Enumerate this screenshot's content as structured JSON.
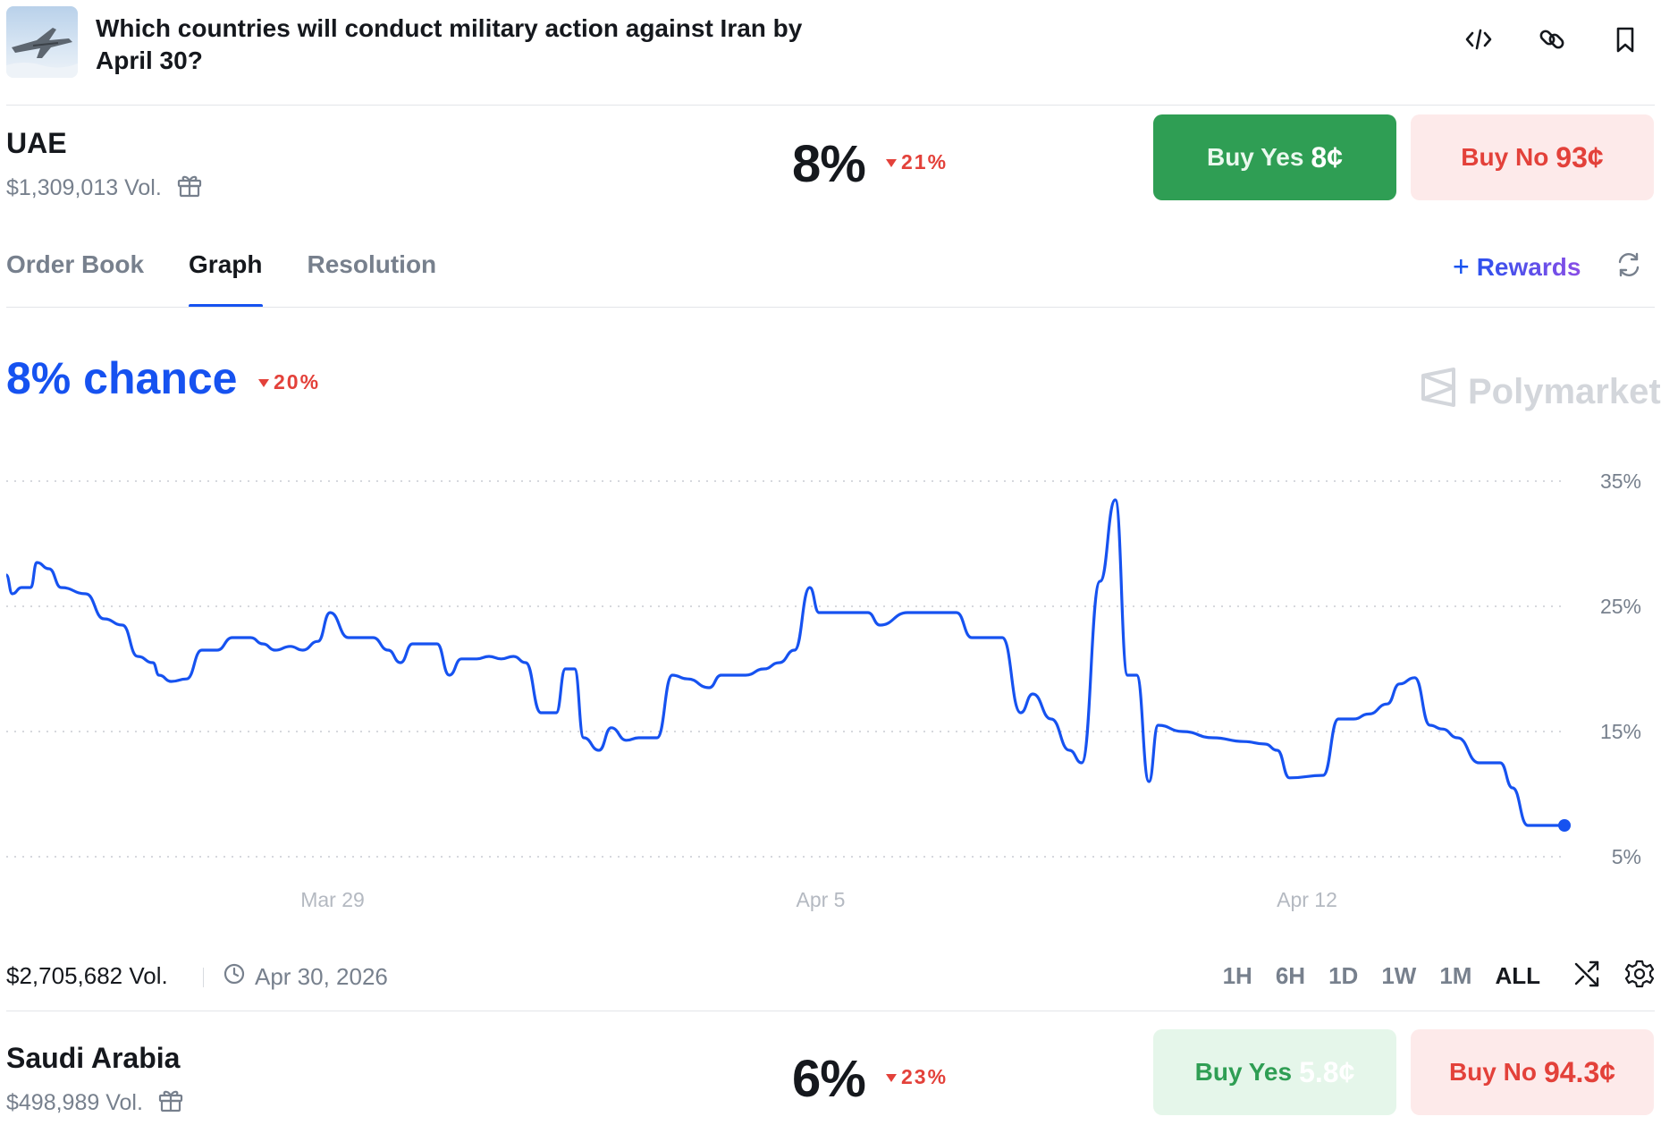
{
  "header": {
    "title": "Which countries will conduct military action against Iran by April 30?",
    "icons": [
      "embed-code-icon",
      "link-icon",
      "bookmark-icon"
    ]
  },
  "outcomes": [
    {
      "name": "UAE",
      "volume": "$1,309,013 Vol.",
      "percent": "8%",
      "change": "21%",
      "buy_yes_label": "Buy Yes",
      "buy_yes_price": "8¢",
      "buy_no_label": "Buy No",
      "buy_no_price": "93¢"
    },
    {
      "name": "Saudi Arabia",
      "volume": "$498,989 Vol.",
      "percent": "6%",
      "change": "23%",
      "buy_yes_label": "Buy Yes",
      "buy_yes_price": "5.8¢",
      "buy_no_label": "Buy No",
      "buy_no_price": "94.3¢"
    }
  ],
  "tabs": [
    {
      "label": "Order Book",
      "active": false
    },
    {
      "label": "Graph",
      "active": true
    },
    {
      "label": "Resolution",
      "active": false
    }
  ],
  "rewards_label": "Rewards",
  "chance": {
    "label": "8% chance",
    "change": "20%"
  },
  "brand": "Polymarket",
  "footer": {
    "volume": "$2,705,682 Vol.",
    "end_date": "Apr 30, 2026",
    "ranges": [
      "1H",
      "6H",
      "1D",
      "1W",
      "1M",
      "ALL"
    ],
    "active_range": "ALL"
  },
  "colors": {
    "accent": "#1652f0",
    "down": "#e3413a",
    "yes": "#2f9e54",
    "no_bg": "#fdeaea"
  },
  "chart_data": {
    "type": "line",
    "series": [
      {
        "values": [
          [
            0,
            27.5
          ],
          [
            0.2,
            26
          ],
          [
            0.5,
            26.5
          ],
          [
            0.8,
            26.5
          ],
          [
            1.0,
            28.5
          ],
          [
            1.4,
            28
          ],
          [
            1.8,
            26.5
          ],
          [
            2.6,
            26
          ],
          [
            3.2,
            24
          ],
          [
            3.8,
            23.5
          ],
          [
            4.3,
            21
          ],
          [
            4.8,
            20.5
          ],
          [
            5.0,
            19.5
          ],
          [
            5.4,
            19
          ],
          [
            5.9,
            19.2
          ],
          [
            6.4,
            21.5
          ],
          [
            6.9,
            21.5
          ],
          [
            7.4,
            22.5
          ],
          [
            8.0,
            22.5
          ],
          [
            8.4,
            22
          ],
          [
            8.8,
            21.5
          ],
          [
            9.3,
            21.8
          ],
          [
            9.7,
            21.5
          ],
          [
            10.2,
            22.2
          ],
          [
            10.6,
            24.5
          ],
          [
            11.2,
            22.5
          ],
          [
            12.0,
            22.5
          ],
          [
            12.5,
            21.5
          ],
          [
            12.9,
            20.5
          ],
          [
            13.3,
            22
          ],
          [
            14.1,
            22
          ],
          [
            14.5,
            19.5
          ],
          [
            14.9,
            20.8
          ],
          [
            15.4,
            20.8
          ],
          [
            15.8,
            21
          ],
          [
            16.2,
            20.8
          ],
          [
            16.6,
            21
          ],
          [
            17.0,
            20.5
          ],
          [
            17.5,
            16.5
          ],
          [
            18.0,
            16.5
          ],
          [
            18.3,
            20
          ],
          [
            18.6,
            20
          ],
          [
            18.9,
            14.5
          ],
          [
            19.4,
            13.5
          ],
          [
            19.8,
            15.3
          ],
          [
            20.3,
            14.3
          ],
          [
            20.7,
            14.5
          ],
          [
            21.3,
            14.5
          ],
          [
            21.8,
            19.5
          ],
          [
            22.3,
            19.2
          ],
          [
            23.0,
            18.5
          ],
          [
            23.4,
            19.5
          ],
          [
            24.2,
            19.5
          ],
          [
            24.8,
            20
          ],
          [
            25.3,
            20.5
          ],
          [
            25.8,
            21.5
          ],
          [
            26.3,
            26.5
          ],
          [
            26.6,
            24.5
          ],
          [
            27.4,
            24.5
          ],
          [
            28.2,
            24.5
          ],
          [
            28.6,
            23.5
          ],
          [
            29.5,
            24.5
          ],
          [
            30.3,
            24.5
          ],
          [
            31.1,
            24.5
          ],
          [
            31.6,
            22.5
          ],
          [
            32.6,
            22.5
          ],
          [
            33.2,
            16.5
          ],
          [
            33.6,
            18
          ],
          [
            34.2,
            16
          ],
          [
            34.8,
            13.5
          ],
          [
            35.2,
            12.5
          ],
          [
            35.8,
            27
          ],
          [
            36.3,
            33.5
          ],
          [
            36.7,
            19.5
          ],
          [
            37.0,
            19.5
          ],
          [
            37.4,
            11
          ],
          [
            37.7,
            15.5
          ],
          [
            38.5,
            15
          ],
          [
            39.5,
            14.5
          ],
          [
            40.5,
            14.2
          ],
          [
            41.2,
            14
          ],
          [
            41.6,
            13.5
          ],
          [
            42.0,
            11.3
          ],
          [
            43.1,
            11.5
          ],
          [
            43.6,
            16
          ],
          [
            44.1,
            16
          ],
          [
            44.6,
            16.4
          ],
          [
            45.2,
            17.2
          ],
          [
            45.6,
            18.8
          ],
          [
            46.1,
            19.3
          ],
          [
            46.6,
            15.5
          ],
          [
            47.0,
            15.2
          ],
          [
            47.5,
            14.5
          ],
          [
            48.2,
            12.5
          ],
          [
            48.9,
            12.5
          ],
          [
            49.3,
            10.5
          ],
          [
            49.8,
            7.5
          ],
          [
            51.0,
            7.5
          ]
        ]
      }
    ],
    "x_tick_labels": [
      "Mar 29",
      "Apr 5",
      "Apr 12"
    ],
    "y_tick_labels": [
      "35%",
      "25%",
      "15%",
      "5%"
    ],
    "ylim": [
      5,
      35
    ],
    "grid": "horizontal dotted",
    "color": "#1652f0"
  }
}
